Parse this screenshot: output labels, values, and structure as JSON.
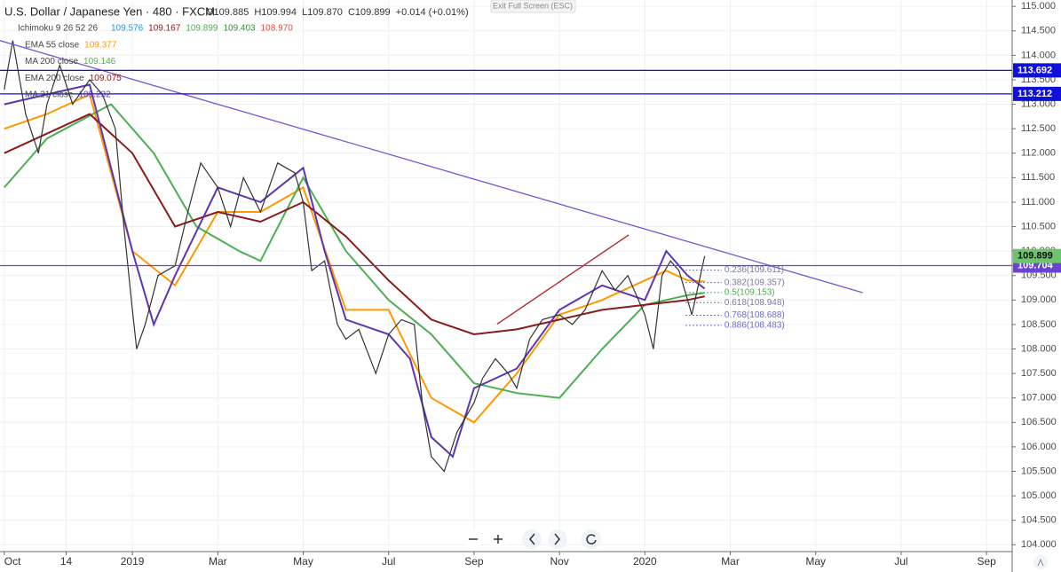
{
  "chart_data": {
    "type": "line",
    "title": "U.S. Dollar / Japanese Yen · 480 · FXCM",
    "ohlc": [
      "O109.885",
      "H109.994",
      "L109.870",
      "C109.899",
      "+0.014 (+0.01%)"
    ],
    "exit_button": "Exit Full Screen (ESC)",
    "ichimoku": {
      "name": "Ichimoku 9 26 52 26",
      "values": [
        {
          "label": "109.576",
          "color": "#2196f3"
        },
        {
          "label": "109.167",
          "color": "#991515"
        },
        {
          "label": "109.899",
          "color": "#4caf50"
        },
        {
          "label": "109.403",
          "color": "#388e3c"
        },
        {
          "label": "108.970",
          "color": "#f44336"
        }
      ]
    },
    "price": {
      "color": "#333333",
      "x": [
        0,
        0.2,
        0.5,
        0.8,
        1.0,
        1.3,
        1.6,
        2.0,
        2.3,
        2.6,
        2.8,
        3.0,
        3.1,
        3.3,
        3.6,
        4.0,
        4.3,
        4.6,
        5.0,
        5.3,
        5.6,
        6.0,
        6.4,
        6.8,
        7.0,
        7.2,
        7.5,
        7.8,
        8.0,
        8.3,
        8.7,
        9.0,
        9.3,
        9.6,
        9.8,
        10.0,
        10.3,
        10.6,
        11.0,
        11.2,
        11.5,
        11.8,
        12.0,
        12.3,
        12.6,
        13.0,
        13.3,
        13.6,
        14.0,
        14.3,
        14.6,
        15.0,
        15.2,
        15.4,
        15.6,
        15.8,
        16.1,
        16.4
      ],
      "values": [
        113.3,
        114.3,
        112.8,
        112.0,
        113.0,
        113.8,
        113.0,
        113.5,
        113.2,
        112.5,
        110.5,
        108.8,
        108.0,
        108.5,
        109.5,
        109.7,
        110.8,
        111.8,
        111.3,
        110.5,
        111.5,
        110.8,
        111.8,
        111.6,
        111.0,
        109.6,
        109.8,
        108.5,
        108.2,
        108.4,
        107.5,
        108.3,
        108.6,
        108.5,
        106.8,
        105.8,
        105.5,
        106.3,
        106.9,
        107.4,
        107.8,
        107.5,
        107.2,
        108.2,
        108.6,
        108.7,
        108.5,
        108.8,
        109.6,
        109.2,
        109.5,
        108.7,
        108.0,
        109.5,
        109.8,
        109.6,
        108.7,
        109.899
      ]
    },
    "series": [
      {
        "name": "EMA 55 close",
        "color": "#ff9800",
        "x": [
          0,
          1,
          2,
          3,
          4,
          5,
          6,
          7,
          8,
          9,
          10,
          11,
          12,
          13,
          14,
          15,
          15.5,
          16,
          16.4
        ],
        "values": [
          112.5,
          112.8,
          113.2,
          110.0,
          109.3,
          110.8,
          110.8,
          111.3,
          108.8,
          108.8,
          107.0,
          106.5,
          107.5,
          108.7,
          109.0,
          109.4,
          109.6,
          109.4,
          109.377
        ]
      },
      {
        "name": "MA 200 close",
        "color": "#4caf50",
        "x": [
          0,
          1,
          2.5,
          3.5,
          4.5,
          5.5,
          6.0,
          7.0,
          8,
          9,
          10,
          11,
          12,
          13,
          14,
          15,
          16,
          16.4
        ],
        "values": [
          111.3,
          112.3,
          113.0,
          112.0,
          110.5,
          110.0,
          109.8,
          111.5,
          110.0,
          109.0,
          108.3,
          107.3,
          107.1,
          107.0,
          108.0,
          108.9,
          109.1,
          109.146
        ]
      },
      {
        "name": "EMA 200 close",
        "color": "#8b1a1a",
        "x": [
          0,
          2,
          3,
          4,
          5,
          6,
          7,
          8,
          9,
          10,
          11,
          12,
          13,
          14,
          15,
          16,
          16.4
        ],
        "values": [
          112.0,
          112.8,
          112.0,
          110.5,
          110.8,
          110.6,
          111.0,
          110.3,
          109.4,
          108.6,
          108.3,
          108.4,
          108.6,
          108.8,
          108.9,
          109.0,
          109.075
        ]
      },
      {
        "name": "MA 21 close",
        "color": "#5e35b1",
        "x": [
          0,
          1,
          2,
          3,
          3.5,
          4,
          5,
          6,
          7,
          7.5,
          8,
          9,
          9.5,
          10,
          10.5,
          11,
          12,
          13,
          14,
          15,
          15.5,
          16,
          16.4
        ],
        "values": [
          113.0,
          113.2,
          113.4,
          110.0,
          108.5,
          109.5,
          111.3,
          111.0,
          111.7,
          110.0,
          108.6,
          108.3,
          107.8,
          106.2,
          105.8,
          107.2,
          107.6,
          108.8,
          109.3,
          109.0,
          110.0,
          109.5,
          109.232
        ]
      }
    ],
    "levels": [
      {
        "value": 113.692,
        "color": "#1010d8",
        "text": "#ffffff"
      },
      {
        "value": 113.212,
        "color": "#1010d8",
        "text": "#ffffff"
      },
      {
        "value": 109.704,
        "color": "#6a44d0",
        "text": "#ffffff"
      }
    ],
    "last_price": {
      "value": 109.899,
      "color": "#6cc46c"
    },
    "trendlines": [
      {
        "x": [
          -0.1,
          20.1
        ],
        "values": [
          114.3,
          109.15
        ],
        "color": "#7b52d6"
      },
      {
        "x": [
          11.54,
          14.62
        ],
        "values": [
          108.51,
          110.33
        ],
        "color": "#b22222"
      }
    ],
    "fib": {
      "x": [
        15.95,
        16.8
      ],
      "levels": [
        {
          "value": 109.611,
          "label": "0.236(109.611)",
          "color": "#7a7aa0"
        },
        {
          "value": 109.357,
          "label": "0.382(109.357)",
          "color": "#7a7aa0"
        },
        {
          "value": 109.153,
          "label": "0.5(109.153)",
          "color": "#4caf50"
        },
        {
          "value": 108.948,
          "label": "0.618(108.948)",
          "color": "#7a7aa0"
        },
        {
          "value": 108.688,
          "label": "0.768(108.688)",
          "color": "#6a6ad0"
        },
        {
          "value": 108.483,
          "label": "0.886(108.483)",
          "color": "#6a6ad0"
        }
      ]
    },
    "xlim": [
      -0.1,
      23.6
    ],
    "ylim": [
      103.86,
      115.13
    ],
    "xticks": [
      {
        "value": 0,
        "label": "Oct"
      },
      {
        "value": 1.45,
        "label": "14"
      },
      {
        "value": 3,
        "label": "2019"
      },
      {
        "value": 5,
        "label": "Mar"
      },
      {
        "value": 7,
        "label": "May"
      },
      {
        "value": 9,
        "label": "Jul"
      },
      {
        "value": 11,
        "label": "Sep"
      },
      {
        "value": 13,
        "label": "Nov"
      },
      {
        "value": 15,
        "label": "2020"
      },
      {
        "value": 17,
        "label": "Mar"
      },
      {
        "value": 19,
        "label": "May"
      },
      {
        "value": 21,
        "label": "Jul"
      },
      {
        "value": 23,
        "label": "Sep"
      }
    ],
    "yticks": [
      {
        "value": 104,
        "label": "104.000"
      },
      {
        "value": 104.5,
        "label": "104.500"
      },
      {
        "value": 105,
        "label": "105.000"
      },
      {
        "value": 105.5,
        "label": "105.500"
      },
      {
        "value": 106,
        "label": "106.000"
      },
      {
        "value": 106.5,
        "label": "106.500"
      },
      {
        "value": 107,
        "label": "107.000"
      },
      {
        "value": 107.5,
        "label": "107.500"
      },
      {
        "value": 108,
        "label": "108.000"
      },
      {
        "value": 108.5,
        "label": "108.500"
      },
      {
        "value": 109,
        "label": "109.000"
      },
      {
        "value": 109.5,
        "label": "109.500"
      },
      {
        "value": 110,
        "label": "110.000"
      },
      {
        "value": 110.5,
        "label": "110.500"
      },
      {
        "value": 111,
        "label": "111.000"
      },
      {
        "value": 111.5,
        "label": "111.500"
      },
      {
        "value": 112,
        "label": "112.000"
      },
      {
        "value": 112.5,
        "label": "112.500"
      },
      {
        "value": 113,
        "label": "113.000"
      },
      {
        "value": 113.5,
        "label": "113.500"
      },
      {
        "value": 114,
        "label": "114.000"
      },
      {
        "value": 114.5,
        "label": "114.500"
      },
      {
        "value": 115,
        "label": "115.000"
      }
    ],
    "grid": true
  }
}
